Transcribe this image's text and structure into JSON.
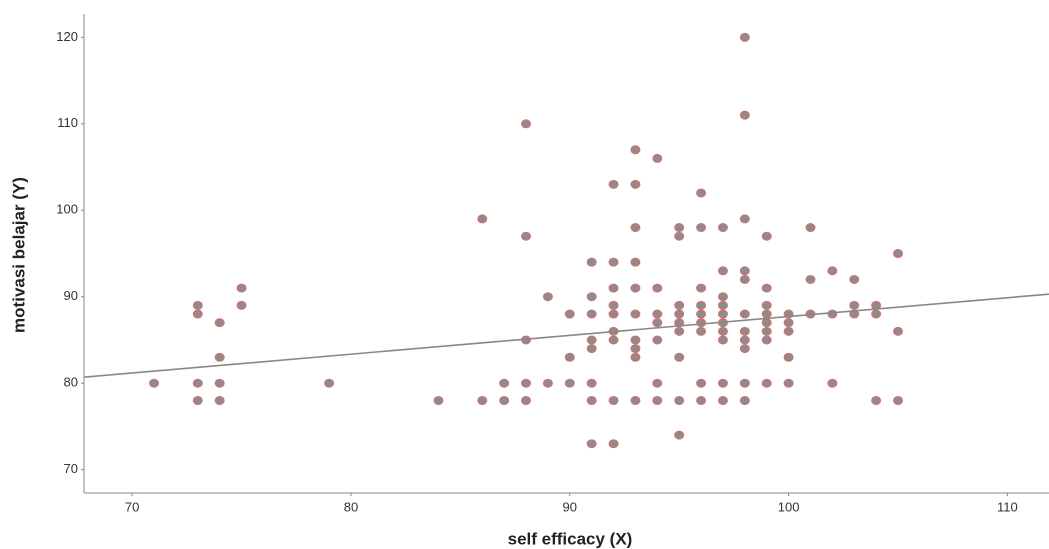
{
  "chart_data": {
    "type": "scatter",
    "x_label": "self efficacy (X)",
    "y_label": "motivasi belajar (Y)",
    "x": [
      71,
      73,
      73,
      73,
      73,
      74,
      74,
      74,
      74,
      75,
      75,
      79,
      84,
      86,
      86,
      87,
      87,
      88,
      88,
      88,
      88,
      88,
      89,
      89,
      90,
      90,
      90,
      91,
      91,
      91,
      91,
      91,
      91,
      91,
      91,
      92,
      92,
      92,
      92,
      92,
      92,
      92,
      92,
      92,
      93,
      93,
      93,
      93,
      93,
      93,
      93,
      93,
      93,
      93,
      94,
      94,
      94,
      94,
      94,
      94,
      94,
      95,
      95,
      95,
      95,
      95,
      95,
      95,
      95,
      95,
      96,
      96,
      96,
      96,
      96,
      96,
      96,
      96,
      96,
      97,
      97,
      97,
      97,
      97,
      97,
      97,
      97,
      97,
      97,
      98,
      98,
      98,
      98,
      98,
      98,
      98,
      98,
      98,
      98,
      98,
      99,
      99,
      99,
      99,
      99,
      99,
      99,
      99,
      100,
      100,
      100,
      100,
      100,
      101,
      101,
      101,
      102,
      102,
      102,
      103,
      103,
      103,
      104,
      104,
      104,
      105,
      105,
      105
    ],
    "series": [
      {
        "color": "#8c8c8c",
        "edge_color": "#e06b6b",
        "values": [
          80,
          89,
          88,
          80,
          78,
          87,
          83,
          80,
          78,
          91,
          89,
          80,
          78,
          99,
          78,
          80,
          78,
          110,
          97,
          85,
          80,
          78,
          90,
          80,
          88,
          83,
          80,
          94,
          90,
          88,
          85,
          84,
          80,
          78,
          73,
          103,
          94,
          91,
          89,
          88,
          86,
          85,
          78,
          73,
          107,
          103,
          98,
          94,
          91,
          88,
          85,
          84,
          83,
          78,
          106,
          91,
          88,
          87,
          85,
          80,
          78,
          98,
          97,
          89,
          88,
          87,
          86,
          83,
          78,
          74,
          102,
          98,
          91,
          89,
          88,
          87,
          86,
          80,
          78,
          98,
          93,
          90,
          89,
          88,
          87,
          86,
          85,
          80,
          78,
          120,
          111,
          99,
          93,
          92,
          88,
          86,
          85,
          84,
          80,
          78,
          97,
          91,
          89,
          88,
          87,
          86,
          85,
          80,
          88,
          87,
          86,
          83,
          80,
          98,
          92,
          88,
          93,
          88,
          80,
          92,
          89,
          88,
          89,
          88,
          78,
          95,
          86,
          78
        ]
      }
    ],
    "fit_line": {
      "color": "#888888",
      "x": [
        67.8,
        111.9
      ],
      "y": [
        80.7,
        90.3
      ]
    },
    "xlim": [
      67.8,
      111.9
    ],
    "xticks": [
      70,
      80,
      90,
      100,
      110
    ],
    "ylim": [
      67.3,
      122.7
    ],
    "yticks": [
      70,
      80,
      90,
      100,
      110,
      120
    ],
    "grid": false
  }
}
